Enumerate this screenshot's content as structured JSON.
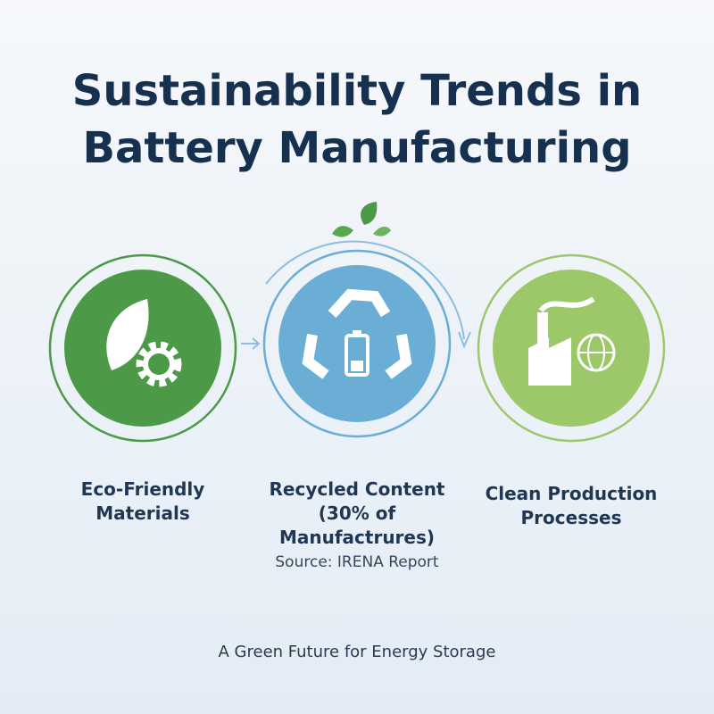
{
  "title": "Sustainability Trends in Battery Manufacturing",
  "items": [
    {
      "label": "Eco-Friendly Materials"
    },
    {
      "label": "Recycled Content (30% of Manufactrures)"
    },
    {
      "label": "Clean Production Processes"
    }
  ],
  "source": "Source: IRENA Report",
  "footer": "A Green Future for Energy Storage"
}
